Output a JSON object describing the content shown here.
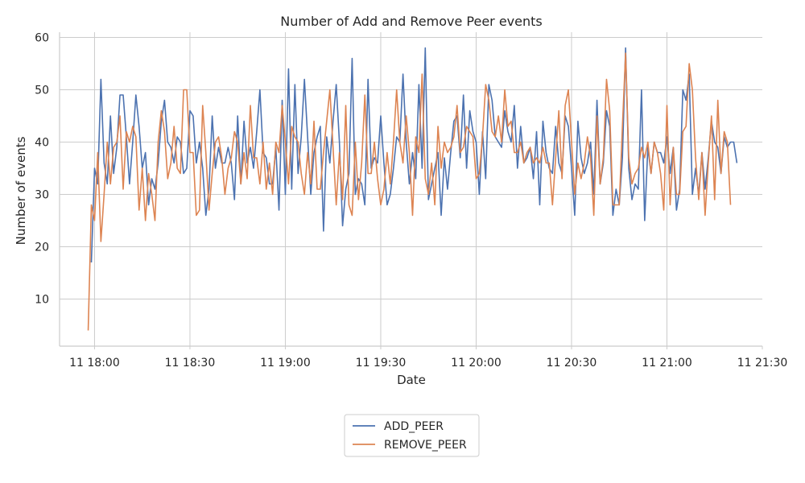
{
  "chart_data": {
    "type": "line",
    "title": "Number of Add and Remove Peer events",
    "xlabel": "Date",
    "ylabel": "Number of events",
    "x_ticks": [
      "11 18:00",
      "11 18:30",
      "11 19:00",
      "11 19:30",
      "11 20:00",
      "11 20:30",
      "11 21:00",
      "11 21:30"
    ],
    "y_ticks": [
      10,
      20,
      30,
      40,
      50,
      60
    ],
    "xlim": [
      "11 17:49",
      "11 21:30"
    ],
    "ylim": [
      1,
      61
    ],
    "grid": true,
    "legend_position": "bottom-center",
    "x_start": "11 17:59",
    "x_step": "1 minute",
    "series": [
      {
        "name": "ADD_PEER",
        "color": "#4c72b0",
        "values": [
          17,
          35,
          32,
          52,
          36,
          32,
          45,
          34,
          39,
          49,
          49,
          41,
          32,
          40,
          49,
          43,
          35,
          38,
          28,
          33,
          31,
          36,
          44,
          48,
          40,
          39,
          36,
          41,
          40,
          34,
          35,
          46,
          45,
          36,
          40,
          35,
          26,
          31,
          45,
          35,
          39,
          36,
          36,
          39,
          36,
          29,
          45,
          32,
          44,
          36,
          39,
          35,
          42,
          50,
          38,
          37,
          32,
          32,
          39,
          27,
          48,
          30,
          54,
          31,
          51,
          34,
          41,
          52,
          41,
          30,
          38,
          41,
          43,
          23,
          41,
          36,
          44,
          51,
          40,
          24,
          31,
          34,
          56,
          30,
          33,
          32,
          28,
          52,
          35,
          37,
          36,
          45,
          36,
          28,
          30,
          35,
          41,
          40,
          53,
          40,
          32,
          38,
          33,
          51,
          35,
          58,
          29,
          32,
          35,
          38,
          26,
          37,
          31,
          38,
          44,
          45,
          37,
          49,
          35,
          46,
          42,
          40,
          30,
          42,
          33,
          51,
          48,
          41,
          40,
          39,
          46,
          42,
          40,
          47,
          35,
          43,
          36,
          37,
          39,
          33,
          42,
          28,
          44,
          38,
          35,
          34,
          43,
          36,
          34,
          45,
          43,
          35,
          26,
          44,
          37,
          34,
          36,
          40,
          30,
          48,
          32,
          36,
          46,
          43,
          26,
          31,
          28,
          37,
          58,
          35,
          29,
          32,
          31,
          50,
          25,
          39,
          34,
          40,
          38,
          38,
          36,
          41,
          34,
          39,
          27,
          31,
          50,
          48,
          53,
          30,
          35,
          30,
          38,
          31,
          37,
          44,
          40,
          39,
          34,
          41,
          39,
          40,
          40,
          36
        ],
        "x_offset_minutes": 0
      },
      {
        "name": "REMOVE_PEER",
        "color": "#dd8452",
        "values": [
          4,
          28,
          25,
          38,
          21,
          30,
          40,
          32,
          39,
          40,
          45,
          31,
          42,
          40,
          43,
          41,
          27,
          35,
          25,
          34,
          30,
          25,
          40,
          46,
          42,
          33,
          36,
          43,
          35,
          34,
          50,
          50,
          38,
          38,
          26,
          27,
          47,
          38,
          27,
          34,
          40,
          41,
          37,
          30,
          35,
          37,
          42,
          40,
          32,
          38,
          33,
          47,
          37,
          37,
          32,
          40,
          31,
          36,
          30,
          40,
          38,
          47,
          40,
          32,
          43,
          41,
          40,
          34,
          30,
          38,
          32,
          44,
          31,
          31,
          38,
          44,
          50,
          39,
          28,
          38,
          29,
          47,
          28,
          26,
          40,
          29,
          36,
          49,
          34,
          34,
          40,
          33,
          28,
          31,
          38,
          32,
          40,
          50,
          40,
          36,
          45,
          38,
          26,
          41,
          38,
          53,
          33,
          30,
          36,
          28,
          43,
          35,
          40,
          38,
          39,
          41,
          47,
          38,
          39,
          43,
          42,
          41,
          33,
          34,
          41,
          51,
          48,
          42,
          41,
          45,
          40,
          50,
          43,
          44,
          38,
          38,
          40,
          36,
          38,
          39,
          36,
          37,
          36,
          39,
          36,
          36,
          28,
          37,
          46,
          33,
          47,
          50,
          40,
          30,
          36,
          33,
          36,
          41,
          37,
          26,
          45,
          32,
          37,
          52,
          46,
          28,
          28,
          28,
          43,
          57,
          37,
          32,
          34,
          35,
          39,
          37,
          40,
          34,
          40,
          38,
          34,
          27,
          47,
          28,
          39,
          30,
          30,
          42,
          43,
          55,
          50,
          37,
          29,
          38,
          26,
          36,
          45,
          29,
          48,
          34,
          42,
          40,
          28
        ],
        "x_offset_minutes": -1
      }
    ]
  }
}
